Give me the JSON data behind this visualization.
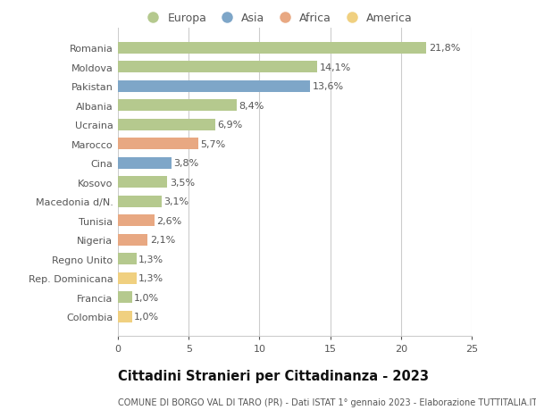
{
  "countries": [
    "Romania",
    "Moldova",
    "Pakistan",
    "Albania",
    "Ucraina",
    "Marocco",
    "Cina",
    "Kosovo",
    "Macedonia d/N.",
    "Tunisia",
    "Nigeria",
    "Regno Unito",
    "Rep. Dominicana",
    "Francia",
    "Colombia"
  ],
  "values": [
    21.8,
    14.1,
    13.6,
    8.4,
    6.9,
    5.7,
    3.8,
    3.5,
    3.1,
    2.6,
    2.1,
    1.3,
    1.3,
    1.0,
    1.0
  ],
  "labels": [
    "21,8%",
    "14,1%",
    "13,6%",
    "8,4%",
    "6,9%",
    "5,7%",
    "3,8%",
    "3,5%",
    "3,1%",
    "2,6%",
    "2,1%",
    "1,3%",
    "1,3%",
    "1,0%",
    "1,0%"
  ],
  "continents": [
    "Europa",
    "Europa",
    "Asia",
    "Europa",
    "Europa",
    "Africa",
    "Asia",
    "Europa",
    "Europa",
    "Africa",
    "Africa",
    "Europa",
    "America",
    "Europa",
    "America"
  ],
  "continent_colors": {
    "Europa": "#b5c98e",
    "Asia": "#7ea6c8",
    "Africa": "#e8a882",
    "America": "#f0d080"
  },
  "legend_items": [
    "Europa",
    "Asia",
    "Africa",
    "America"
  ],
  "xlim": [
    0,
    25
  ],
  "xticks": [
    0,
    5,
    10,
    15,
    20,
    25
  ],
  "title": "Cittadini Stranieri per Cittadinanza - 2023",
  "subtitle": "COMUNE DI BORGO VAL DI TARO (PR) - Dati ISTAT 1° gennaio 2023 - Elaborazione TUTTITALIA.IT",
  "background_color": "#ffffff",
  "grid_color": "#cccccc",
  "bar_height": 0.6,
  "label_fontsize": 8.0,
  "tick_fontsize": 8.0,
  "title_fontsize": 10.5,
  "subtitle_fontsize": 7.0,
  "legend_fontsize": 9.0
}
